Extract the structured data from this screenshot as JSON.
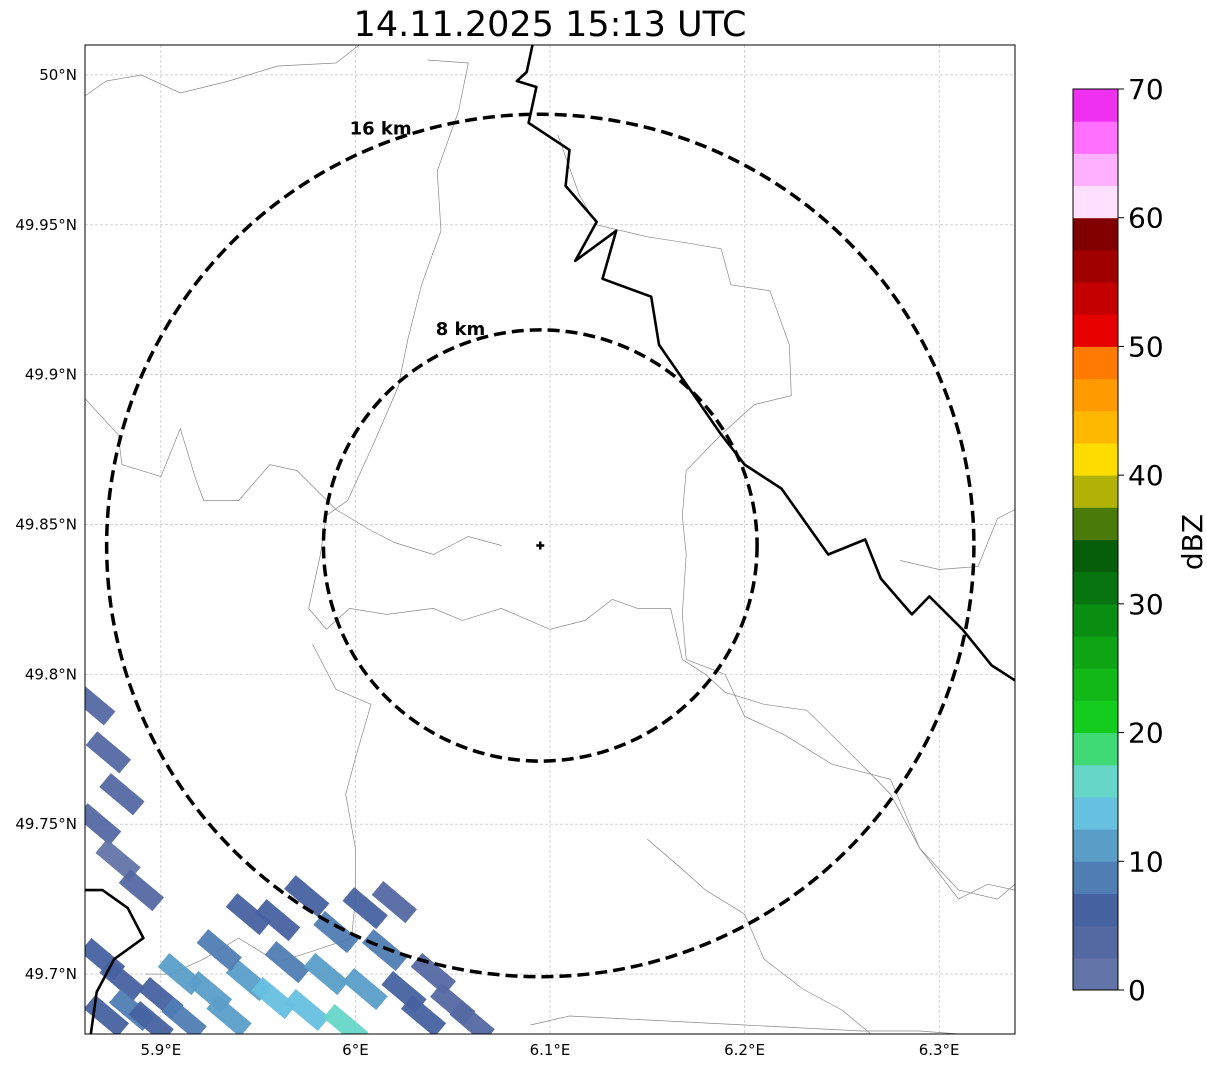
{
  "title": "14.11.2025 15:13 UTC",
  "map": {
    "lon_range": [
      5.861,
      6.339
    ],
    "lat_range": [
      49.68,
      50.01
    ],
    "x_ticks": [
      {
        "value": 5.9,
        "label": "5.9°E"
      },
      {
        "value": 6.0,
        "label": "6°E"
      },
      {
        "value": 6.1,
        "label": "6.1°E"
      },
      {
        "value": 6.2,
        "label": "6.2°E"
      },
      {
        "value": 6.3,
        "label": "6.3°E"
      }
    ],
    "y_ticks": [
      {
        "value": 50.0,
        "label": "50°N"
      },
      {
        "value": 49.95,
        "label": "49.95°N"
      },
      {
        "value": 49.9,
        "label": "49.9°N"
      },
      {
        "value": 49.85,
        "label": "49.85°N"
      },
      {
        "value": 49.8,
        "label": "49.8°N"
      },
      {
        "value": 49.75,
        "label": "49.75°N"
      },
      {
        "value": 49.7,
        "label": "49.7°N"
      }
    ],
    "gridlines": true,
    "radar_site": {
      "lon": 6.095,
      "lat": 49.843
    },
    "range_rings": [
      {
        "label": "8 km",
        "radius_km": 8
      },
      {
        "label": "16 km",
        "radius_km": 16
      }
    ],
    "national_border": [
      [
        6.091,
        50.01
      ],
      [
        6.088,
        50.001
      ],
      [
        6.083,
        49.998
      ],
      [
        6.093,
        49.996
      ],
      [
        6.089,
        49.984
      ],
      [
        6.11,
        49.975
      ],
      [
        6.108,
        49.963
      ],
      [
        6.124,
        49.951
      ],
      [
        6.113,
        49.938
      ],
      [
        6.134,
        49.948
      ],
      [
        6.127,
        49.932
      ],
      [
        6.152,
        49.926
      ],
      [
        6.156,
        49.91
      ],
      [
        6.188,
        49.88
      ],
      [
        6.2,
        49.87
      ],
      [
        6.219,
        49.862
      ],
      [
        6.243,
        49.84
      ],
      [
        6.262,
        49.845
      ],
      [
        6.27,
        49.832
      ],
      [
        6.286,
        49.82
      ],
      [
        6.295,
        49.826
      ],
      [
        6.312,
        49.815
      ],
      [
        6.327,
        49.803
      ],
      [
        6.339,
        49.798
      ]
    ],
    "border_sw": [
      [
        5.861,
        49.728
      ],
      [
        5.87,
        49.728
      ],
      [
        5.883,
        49.722
      ],
      [
        5.891,
        49.712
      ],
      [
        5.876,
        49.705
      ],
      [
        5.867,
        49.694
      ],
      [
        5.864,
        49.68
      ]
    ],
    "admin_boundaries": [
      [
        [
          5.861,
          49.993
        ],
        [
          5.872,
          49.998
        ],
        [
          5.89,
          50.0
        ],
        [
          5.91,
          49.994
        ],
        [
          5.935,
          49.998
        ],
        [
          5.96,
          50.003
        ],
        [
          5.99,
          50.004
        ],
        [
          6.002,
          50.01
        ]
      ],
      [
        [
          6.037,
          50.005
        ],
        [
          6.058,
          50.004
        ],
        [
          6.053,
          49.988
        ],
        [
          6.042,
          49.968
        ],
        [
          6.044,
          49.948
        ],
        [
          6.034,
          49.93
        ],
        [
          6.027,
          49.912
        ],
        [
          6.022,
          49.896
        ],
        [
          6.01,
          49.878
        ],
        [
          5.996,
          49.858
        ],
        [
          5.985,
          49.853
        ],
        [
          5.982,
          49.84
        ],
        [
          5.976,
          49.822
        ],
        [
          5.985,
          49.815
        ],
        [
          5.997,
          49.822
        ],
        [
          6.016,
          49.82
        ],
        [
          6.04,
          49.822
        ],
        [
          6.055,
          49.818
        ],
        [
          6.075,
          49.822
        ],
        [
          6.1,
          49.815
        ],
        [
          6.118,
          49.818
        ],
        [
          6.132,
          49.825
        ],
        [
          6.145,
          49.822
        ],
        [
          6.162,
          49.822
        ],
        [
          6.168,
          49.805
        ]
      ],
      [
        [
          6.168,
          49.805
        ],
        [
          6.18,
          49.8
        ],
        [
          6.19,
          49.794
        ],
        [
          6.21,
          49.79
        ],
        [
          6.232,
          49.788
        ],
        [
          6.26,
          49.77
        ],
        [
          6.275,
          49.76
        ],
        [
          6.29,
          49.742
        ],
        [
          6.31,
          49.728
        ],
        [
          6.33,
          49.725
        ],
        [
          6.339,
          49.73
        ]
      ],
      [
        [
          6.104,
          49.98
        ],
        [
          6.115,
          49.96
        ],
        [
          6.124,
          49.95
        ],
        [
          6.15,
          49.946
        ],
        [
          6.17,
          49.944
        ],
        [
          6.188,
          49.942
        ],
        [
          6.193,
          49.93
        ],
        [
          6.213,
          49.928
        ],
        [
          6.223,
          49.91
        ],
        [
          6.224,
          49.893
        ]
      ],
      [
        [
          6.224,
          49.893
        ],
        [
          6.205,
          49.89
        ],
        [
          6.188,
          49.88
        ],
        [
          6.17,
          49.868
        ],
        [
          6.168,
          49.853
        ],
        [
          6.17,
          49.84
        ],
        [
          6.168,
          49.82
        ],
        [
          6.17,
          49.805
        ]
      ],
      [
        [
          5.861,
          49.892
        ],
        [
          5.878,
          49.88
        ],
        [
          5.88,
          49.87
        ],
        [
          5.9,
          49.866
        ],
        [
          5.91,
          49.882
        ],
        [
          5.918,
          49.865
        ],
        [
          5.922,
          49.858
        ],
        [
          5.94,
          49.858
        ],
        [
          5.956,
          49.87
        ],
        [
          5.97,
          49.868
        ],
        [
          5.99,
          49.855
        ],
        [
          6.008,
          49.848
        ],
        [
          6.02,
          49.844
        ],
        [
          6.04,
          49.84
        ],
        [
          6.058,
          49.846
        ],
        [
          6.075,
          49.843
        ]
      ],
      [
        [
          5.978,
          49.81
        ],
        [
          5.99,
          49.795
        ],
        [
          6.008,
          49.79
        ],
        [
          6.0,
          49.772
        ],
        [
          5.995,
          49.76
        ],
        [
          6.0,
          49.742
        ],
        [
          6.0,
          49.725
        ],
        [
          5.998,
          49.712
        ],
        [
          5.975,
          49.707
        ],
        [
          5.96,
          49.704
        ],
        [
          5.94,
          49.712
        ],
        [
          5.922,
          49.705
        ],
        [
          5.905,
          49.7
        ],
        [
          5.892,
          49.7
        ]
      ],
      [
        [
          6.17,
          49.805
        ],
        [
          6.19,
          49.8
        ],
        [
          6.2,
          49.786
        ],
        [
          6.22,
          49.78
        ],
        [
          6.245,
          49.77
        ],
        [
          6.275,
          49.765
        ],
        [
          6.29,
          49.742
        ],
        [
          6.31,
          49.725
        ],
        [
          6.325,
          49.73
        ],
        [
          6.339,
          49.728
        ]
      ],
      [
        [
          6.09,
          49.683
        ],
        [
          6.11,
          49.686
        ],
        [
          6.14,
          49.685
        ],
        [
          6.17,
          49.684
        ],
        [
          6.2,
          49.683
        ],
        [
          6.23,
          49.682
        ],
        [
          6.26,
          49.681
        ],
        [
          6.29,
          49.681
        ],
        [
          6.31,
          49.68
        ]
      ],
      [
        [
          6.15,
          49.745
        ],
        [
          6.168,
          49.735
        ],
        [
          6.18,
          49.728
        ],
        [
          6.2,
          49.72
        ],
        [
          6.21,
          49.705
        ],
        [
          6.23,
          49.695
        ],
        [
          6.25,
          49.688
        ],
        [
          6.265,
          49.68
        ]
      ],
      [
        [
          6.28,
          49.838
        ],
        [
          6.3,
          49.835
        ],
        [
          6.32,
          49.836
        ],
        [
          6.33,
          49.852
        ],
        [
          6.339,
          49.855
        ]
      ]
    ],
    "reflectivity_cells": [
      {
        "lon": 5.865,
        "lat": 49.79,
        "dbz": 4
      },
      {
        "lon": 5.873,
        "lat": 49.774,
        "dbz": 3
      },
      {
        "lon": 5.88,
        "lat": 49.76,
        "dbz": 4
      },
      {
        "lon": 5.868,
        "lat": 49.75,
        "dbz": 3
      },
      {
        "lon": 5.878,
        "lat": 49.738,
        "dbz": 2
      },
      {
        "lon": 5.89,
        "lat": 49.728,
        "dbz": 3
      },
      {
        "lon": 5.87,
        "lat": 49.705,
        "dbz": 5
      },
      {
        "lon": 5.88,
        "lat": 49.698,
        "dbz": 6
      },
      {
        "lon": 5.885,
        "lat": 49.688,
        "dbz": 8
      },
      {
        "lon": 5.9,
        "lat": 49.692,
        "dbz": 7
      },
      {
        "lon": 5.912,
        "lat": 49.685,
        "dbz": 9
      },
      {
        "lon": 5.925,
        "lat": 49.694,
        "dbz": 10
      },
      {
        "lon": 5.935,
        "lat": 49.686,
        "dbz": 12
      },
      {
        "lon": 5.945,
        "lat": 49.698,
        "dbz": 11
      },
      {
        "lon": 5.958,
        "lat": 49.692,
        "dbz": 13
      },
      {
        "lon": 5.965,
        "lat": 49.704,
        "dbz": 9
      },
      {
        "lon": 5.975,
        "lat": 49.688,
        "dbz": 14
      },
      {
        "lon": 5.985,
        "lat": 49.7,
        "dbz": 12
      },
      {
        "lon": 5.995,
        "lat": 49.683,
        "dbz": 17
      },
      {
        "lon": 6.005,
        "lat": 49.695,
        "dbz": 11
      },
      {
        "lon": 5.96,
        "lat": 49.718,
        "dbz": 6
      },
      {
        "lon": 5.975,
        "lat": 49.726,
        "dbz": 7
      },
      {
        "lon": 5.99,
        "lat": 49.714,
        "dbz": 8
      },
      {
        "lon": 6.005,
        "lat": 49.722,
        "dbz": 6
      },
      {
        "lon": 6.015,
        "lat": 49.708,
        "dbz": 9
      },
      {
        "lon": 5.945,
        "lat": 49.72,
        "dbz": 5
      },
      {
        "lon": 6.025,
        "lat": 49.694,
        "dbz": 7
      },
      {
        "lon": 6.035,
        "lat": 49.686,
        "dbz": 5
      },
      {
        "lon": 6.05,
        "lat": 49.69,
        "dbz": 3
      },
      {
        "lon": 6.06,
        "lat": 49.684,
        "dbz": 3
      },
      {
        "lon": 6.04,
        "lat": 49.7,
        "dbz": 4
      },
      {
        "lon": 5.93,
        "lat": 49.708,
        "dbz": 8
      },
      {
        "lon": 5.91,
        "lat": 49.7,
        "dbz": 10
      },
      {
        "lon": 5.895,
        "lat": 49.684,
        "dbz": 5
      },
      {
        "lon": 5.872,
        "lat": 49.686,
        "dbz": 6
      },
      {
        "lon": 6.02,
        "lat": 49.724,
        "dbz": 4
      }
    ]
  },
  "colorbar": {
    "label": "dBZ",
    "min": 0,
    "max": 70,
    "step": 2.5,
    "colors": [
      "#6374a8",
      "#5468a2",
      "#4762a0",
      "#4f7db4",
      "#5a9ec8",
      "#66c0e0",
      "#66d6c8",
      "#3ed874",
      "#14cc1e",
      "#12b818",
      "#0ea414",
      "#0a8e12",
      "#087410",
      "#065e0a",
      "#4a7a0a",
      "#b0b208",
      "#ffdc00",
      "#ffb800",
      "#ff9a00",
      "#ff7a00",
      "#e60000",
      "#c40000",
      "#a00000",
      "#800000",
      "#ffe0ff",
      "#ffb0ff",
      "#ff70ff",
      "#f030f0"
    ],
    "ticks": [
      {
        "value": 0,
        "label": "0"
      },
      {
        "value": 10,
        "label": "10"
      },
      {
        "value": 20,
        "label": "20"
      },
      {
        "value": 30,
        "label": "30"
      },
      {
        "value": 40,
        "label": "40"
      },
      {
        "value": 50,
        "label": "50"
      },
      {
        "value": 60,
        "label": "60"
      },
      {
        "value": 70,
        "label": "70"
      }
    ]
  }
}
